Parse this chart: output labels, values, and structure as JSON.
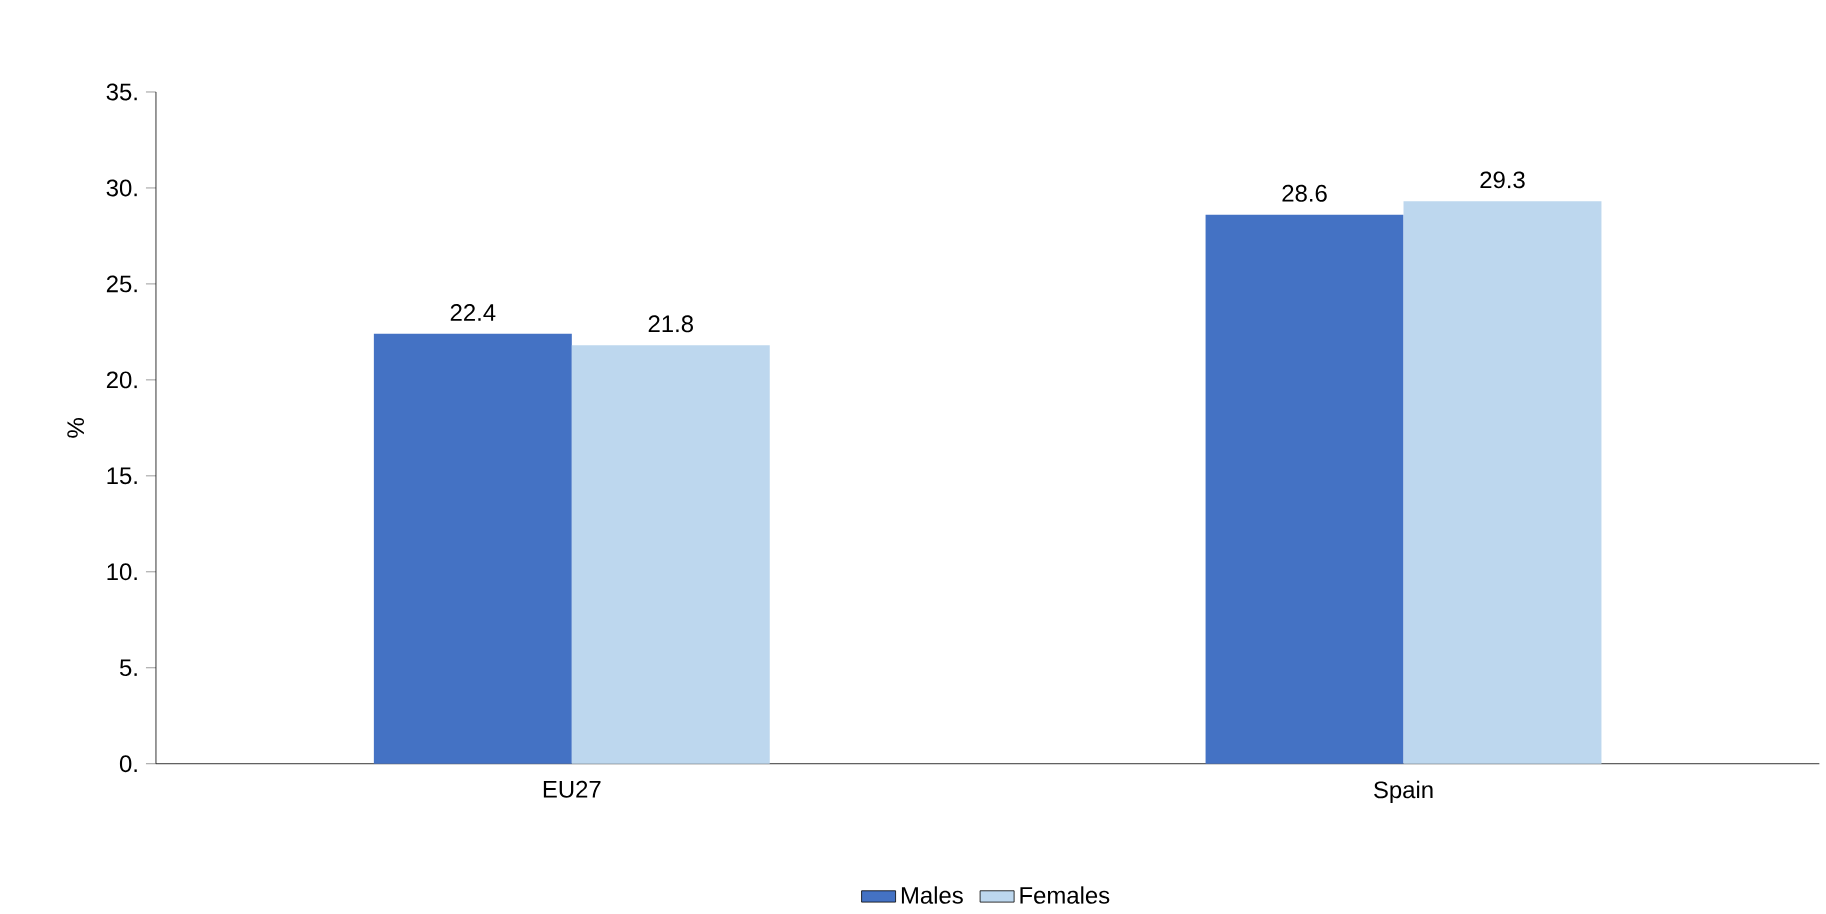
{
  "chart_data": {
    "type": "bar",
    "ylabel": "%",
    "categories": [
      "EU27",
      "Spain"
    ],
    "series": [
      {
        "name": "Males",
        "color": "#4472c4",
        "values": [
          22.4,
          28.6
        ]
      },
      {
        "name": "Females",
        "color": "#bdd7ee",
        "values": [
          21.8,
          29.3
        ]
      }
    ],
    "ylim": [
      0,
      35
    ],
    "yticks": [
      {
        "value": 0,
        "label": "0."
      },
      {
        "value": 5,
        "label": "5."
      },
      {
        "value": 10,
        "label": "10."
      },
      {
        "value": 15,
        "label": "15."
      },
      {
        "value": 20,
        "label": "20."
      },
      {
        "value": 25,
        "label": "25."
      },
      {
        "value": 30,
        "label": "30."
      },
      {
        "value": 35,
        "label": "35."
      }
    ],
    "data_labels": true,
    "legend": "bottom",
    "grid": false
  }
}
